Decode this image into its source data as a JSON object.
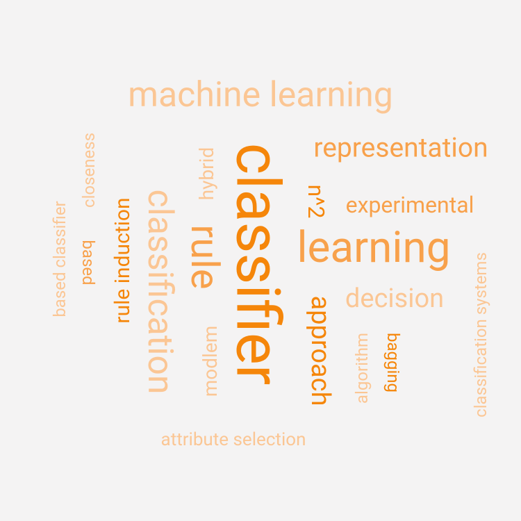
{
  "colors": {
    "background": "#f4f3f3",
    "dark": "#f5860a",
    "medium": "#f8a14b",
    "light": "#fbc694"
  },
  "words": [
    {
      "text": "machine learning",
      "shade": "light"
    },
    {
      "text": "classifier",
      "shade": "dark"
    },
    {
      "text": "representation",
      "shade": "medium"
    },
    {
      "text": "n^2",
      "shade": "dark"
    },
    {
      "text": "experimental",
      "shade": "medium"
    },
    {
      "text": "learning",
      "shade": "medium"
    },
    {
      "text": "decision",
      "shade": "light"
    },
    {
      "text": "classification",
      "shade": "light"
    },
    {
      "text": "rule",
      "shade": "medium"
    },
    {
      "text": "hybrid",
      "shade": "light"
    },
    {
      "text": "rule induction",
      "shade": "dark"
    },
    {
      "text": "closeness",
      "shade": "light"
    },
    {
      "text": "based",
      "shade": "medium"
    },
    {
      "text": "based classifier",
      "shade": "light"
    },
    {
      "text": "modlem",
      "shade": "light"
    },
    {
      "text": "approach",
      "shade": "dark"
    },
    {
      "text": "algorithm",
      "shade": "light"
    },
    {
      "text": "bagging",
      "shade": "dark"
    },
    {
      "text": "classification systems",
      "shade": "light"
    },
    {
      "text": "attribute selection",
      "shade": "light"
    }
  ]
}
